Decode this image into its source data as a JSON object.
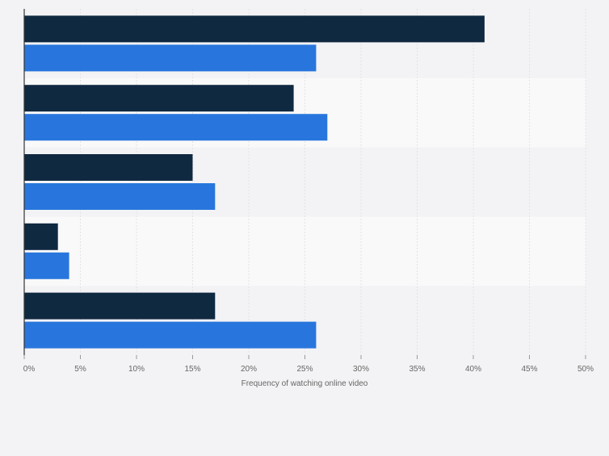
{
  "chart_data": {
    "type": "bar",
    "orientation": "horizontal",
    "categories": [
      "",
      "",
      "",
      "",
      ""
    ],
    "series": [
      {
        "name": "",
        "color": "#0f2941",
        "values": [
          41,
          24,
          15,
          3,
          17
        ]
      },
      {
        "name": "",
        "color": "#2876dd",
        "values": [
          26,
          27,
          17,
          4,
          26
        ]
      }
    ],
    "title": "",
    "xlabel": "Frequency of watching online video",
    "ylabel": "",
    "xlim": [
      0,
      50
    ],
    "xticks": [
      "0%",
      "5%",
      "10%",
      "15%",
      "20%",
      "25%",
      "30%",
      "35%",
      "40%",
      "45%",
      "50%"
    ],
    "grid": true,
    "legend": "none"
  },
  "colors": {
    "background": "#f3f3f5",
    "band_alternate": "#f9f9fa",
    "gridline": "#e1e3e6",
    "axis": "#333333",
    "tick_text": "#666666"
  }
}
